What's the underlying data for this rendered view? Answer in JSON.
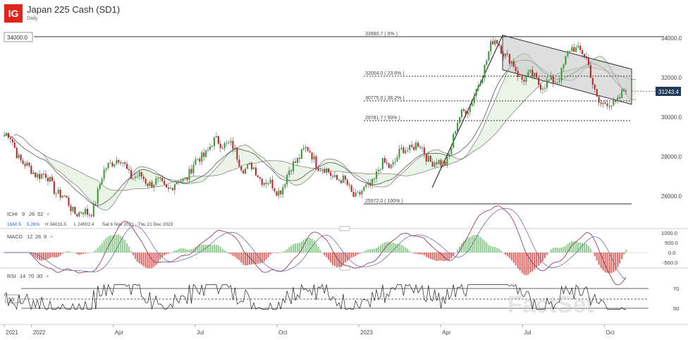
{
  "header": {
    "logo_text": "IG",
    "title": "Japan 225 Cash (SD1)",
    "subtitle": "Daily"
  },
  "price_panel": {
    "level_box": "34000.0",
    "current_price": "31243.4",
    "y_ticks": [
      "34000.0",
      "32000.0",
      "30000.0",
      "28000.0",
      "26000.0"
    ],
    "colors": {
      "up": "#3a9c3a",
      "down": "#c0282d",
      "cloud": "#e9f4e4",
      "channel": "#c8c8c8",
      "price_tag": "#1f3b57"
    }
  },
  "fibonacci": [
    {
      "label": "33990.7 ( 0% )",
      "value": 33990.7
    },
    {
      "label": "32004.0 ( 23.6% )",
      "value": 32004.0
    },
    {
      "label": "30775.0 ( 38.2% )",
      "value": 30775.0
    },
    {
      "label": "29781.7 ( 50% )",
      "value": 29781.7
    },
    {
      "label": "25572.0 ( 100% )",
      "value": 25572.0
    }
  ],
  "ichimoku": {
    "label": "ICHI",
    "params": [
      "9",
      "26",
      "52"
    ],
    "stats": [
      "1560.5",
      "5.26%",
      "H 34015.5",
      "L 24502.4",
      "Sat 6 Nov 2021 - Thu 21 Dec 2023"
    ]
  },
  "macd": {
    "label": "MACD",
    "params": [
      "12",
      "26",
      "9"
    ],
    "y_ticks": [
      "1000.0",
      "500.0",
      "0.0",
      "-500.0"
    ]
  },
  "rsi": {
    "label": "RSI",
    "params": [
      "14",
      "70",
      "30"
    ],
    "y_ticks": [
      "70",
      "50"
    ],
    "left_tag": "50",
    "watermark": "FactSet"
  },
  "x_axis": [
    "2021",
    "2022",
    "Apr",
    "Jul",
    "Oct",
    "2023",
    "Apr",
    "Jul",
    "Oct"
  ],
  "chart_data": {
    "type": "candlestick",
    "title": "Japan 225 Cash (SD1)",
    "subtitle": "Daily",
    "x_range": [
      "2021-12",
      "2023-10"
    ],
    "y_range": [
      24500,
      34500
    ],
    "price_anchors": [
      [
        "2021-12",
        29000
      ],
      [
        "2022-01",
        27200
      ],
      [
        "2022-03",
        25000
      ],
      [
        "2022-04",
        27800
      ],
      [
        "2022-05",
        26800
      ],
      [
        "2022-06",
        26400
      ],
      [
        "2022-08",
        28700
      ],
      [
        "2022-09",
        27300
      ],
      [
        "2022-10",
        26300
      ],
      [
        "2022-11",
        28200
      ],
      [
        "2022-12",
        27000
      ],
      [
        "2023-01",
        26000
      ],
      [
        "2023-02",
        27500
      ],
      [
        "2023-03",
        28500
      ],
      [
        "2023-04",
        27500
      ],
      [
        "2023-05",
        30500
      ],
      [
        "2023-06",
        33700
      ],
      [
        "2023-07",
        32000
      ],
      [
        "2023-08",
        31600
      ],
      [
        "2023-09",
        33500
      ],
      [
        "2023-10",
        30500
      ],
      [
        "2023-11",
        31243.4
      ]
    ],
    "last_price": 31243.4,
    "fibonacci_levels": [
      33990.7,
      32004.0,
      30775.0,
      29781.7,
      25572.0
    ],
    "horizontal_level": 34000.0,
    "channel": {
      "upper": [
        [
          "2023-06",
          34000
        ],
        [
          "2023-11",
          32500
        ]
      ],
      "lower": [
        [
          "2023-06",
          32300
        ],
        [
          "2023-11",
          30500
        ]
      ]
    },
    "trendline": [
      [
        "2023-03",
        26300
      ],
      [
        "2023-06",
        34000
      ]
    ],
    "macd_range": [
      -700,
      1100
    ],
    "rsi_range": [
      25,
      80
    ],
    "rsi_levels": [
      70,
      50,
      30
    ],
    "grid": false,
    "legend": "none"
  }
}
